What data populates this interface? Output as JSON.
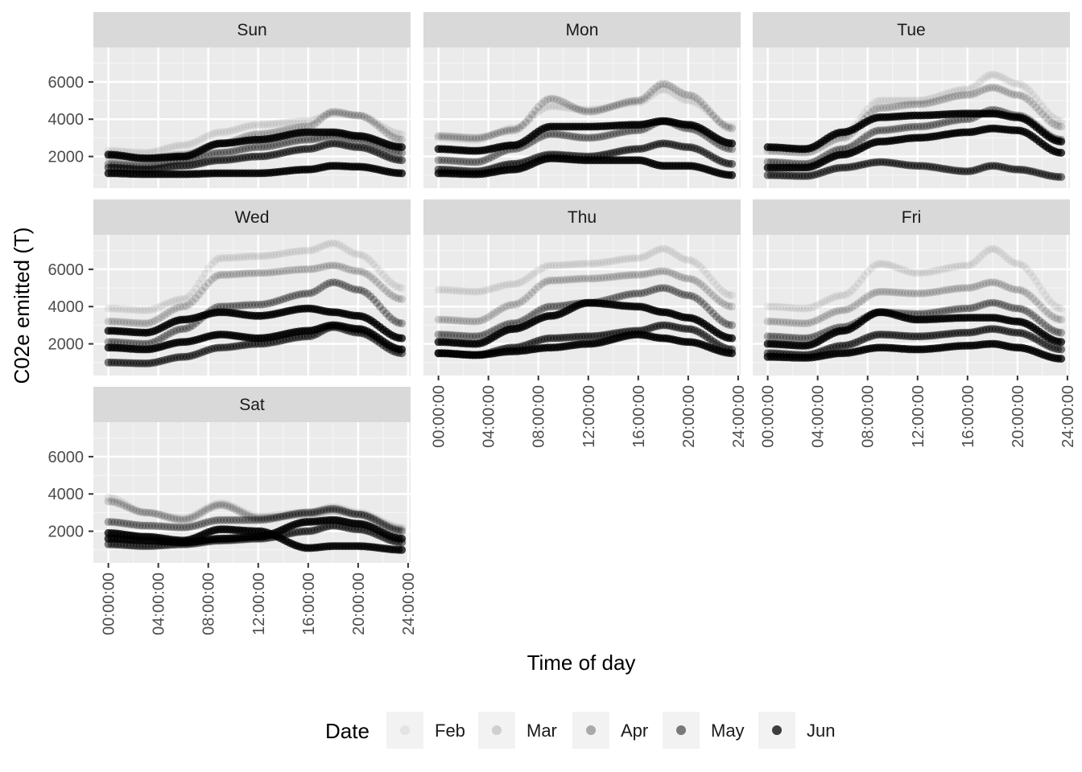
{
  "chart_data": {
    "type": "scatter",
    "title": "",
    "xlabel": "Time of day",
    "ylabel": "C02e emitted (T)",
    "facet_by": "day of week",
    "facets": [
      "Sun",
      "Mon",
      "Tue",
      "Wed",
      "Thu",
      "Fri",
      "Sat"
    ],
    "facet_layout": {
      "columns": 3,
      "rows": 3
    },
    "x_range_hours": [
      -1.2,
      24.2
    ],
    "ylim": [
      300,
      7850
    ],
    "x_ticks": [
      "00:00:00",
      "04:00:00",
      "08:00:00",
      "12:00:00",
      "16:00:00",
      "20:00:00",
      "24:00:00"
    ],
    "x_tick_hours": [
      0,
      4,
      8,
      12,
      16,
      20,
      24
    ],
    "y_ticks": [
      2000,
      4000,
      6000
    ],
    "y_tick_labels": [
      "2000",
      "4000",
      "6000"
    ],
    "grid": true,
    "legend": {
      "title": "Date",
      "position": "bottom",
      "entries": [
        "Feb",
        "Mar",
        "Apr",
        "May",
        "Jun"
      ],
      "alphas": [
        0.06,
        0.14,
        0.3,
        0.5,
        0.75
      ]
    },
    "point_color": "#000000",
    "series": [
      {
        "facet": "Sun",
        "name": "Feb",
        "hours": [
          0,
          3,
          6,
          9,
          12,
          16,
          18,
          20,
          23.5
        ],
        "values": [
          2300,
          2200,
          2600,
          3300,
          3700,
          3900,
          4300,
          4200,
          3200
        ]
      },
      {
        "facet": "Sun",
        "name": "Mar",
        "hours": [
          0,
          3,
          6,
          9,
          12,
          16,
          18,
          20,
          23.5
        ],
        "values": [
          2000,
          1900,
          2100,
          2700,
          3200,
          3600,
          4400,
          4200,
          2900
        ]
      },
      {
        "facet": "Sun",
        "name": "Apr",
        "hours": [
          0,
          3,
          6,
          9,
          12,
          16,
          18,
          20,
          23.5
        ],
        "values": [
          1600,
          1500,
          1800,
          2200,
          2500,
          2900,
          3100,
          2900,
          2200
        ]
      },
      {
        "facet": "Sun",
        "name": "May",
        "hours": [
          0,
          3,
          6,
          9,
          12,
          16,
          18,
          20,
          23.5
        ],
        "values": [
          1400,
          1300,
          1500,
          1800,
          2000,
          2400,
          2700,
          2500,
          1800
        ]
      },
      {
        "facet": "Sun",
        "name": "Jun",
        "hours": [
          0,
          3,
          6,
          9,
          12,
          16,
          18,
          20,
          23.5
        ],
        "values": [
          2100,
          1900,
          2000,
          2700,
          2900,
          3300,
          3300,
          3100,
          2500
        ]
      },
      {
        "facet": "Sun",
        "name": "Jun",
        "hours": [
          0,
          3,
          6,
          9,
          12,
          16,
          18,
          20,
          23.5
        ],
        "values": [
          1100,
          1050,
          1050,
          1100,
          1100,
          1300,
          1500,
          1450,
          1100
        ]
      },
      {
        "facet": "Mon",
        "name": "Feb",
        "hours": [
          0,
          3,
          6,
          9,
          12,
          16,
          18,
          20,
          23.5
        ],
        "values": [
          3000,
          2900,
          3500,
          4700,
          4500,
          4900,
          5600,
          5000,
          3600
        ]
      },
      {
        "facet": "Mon",
        "name": "Mar",
        "hours": [
          0,
          3,
          6,
          9,
          12,
          16,
          18,
          20,
          23.5
        ],
        "values": [
          3100,
          3000,
          3400,
          5100,
          4400,
          5000,
          5900,
          5300,
          3500
        ]
      },
      {
        "facet": "Mon",
        "name": "Apr",
        "hours": [
          0,
          3,
          6,
          9,
          12,
          16,
          18,
          20,
          23.5
        ],
        "values": [
          1800,
          1700,
          2400,
          3200,
          3000,
          3400,
          3900,
          3500,
          2400
        ]
      },
      {
        "facet": "Mon",
        "name": "May",
        "hours": [
          0,
          3,
          6,
          9,
          12,
          16,
          18,
          20,
          23.5
        ],
        "values": [
          1300,
          1200,
          1600,
          2100,
          2000,
          2400,
          2700,
          2500,
          1600
        ]
      },
      {
        "facet": "Mon",
        "name": "Jun",
        "hours": [
          0,
          3,
          6,
          9,
          12,
          16,
          18,
          20,
          23.5
        ],
        "values": [
          2400,
          2300,
          2600,
          3600,
          3600,
          3700,
          3900,
          3700,
          2700
        ]
      },
      {
        "facet": "Mon",
        "name": "Jun",
        "hours": [
          0,
          3,
          6,
          9,
          12,
          16,
          18,
          20,
          23.5
        ],
        "values": [
          1100,
          1050,
          1300,
          1900,
          1800,
          1800,
          1500,
          1500,
          1000
        ]
      },
      {
        "facet": "Tue",
        "name": "Feb",
        "hours": [
          0,
          3,
          6,
          9,
          12,
          16,
          18,
          20,
          23.5
        ],
        "values": [
          2500,
          2400,
          3200,
          5000,
          5000,
          5600,
          6400,
          5900,
          3900
        ]
      },
      {
        "facet": "Tue",
        "name": "Mar",
        "hours": [
          0,
          3,
          6,
          9,
          12,
          16,
          18,
          20,
          23.5
        ],
        "values": [
          2300,
          2200,
          3000,
          4600,
          4800,
          5300,
          5700,
          5300,
          3600
        ]
      },
      {
        "facet": "Tue",
        "name": "Apr",
        "hours": [
          0,
          3,
          6,
          9,
          12,
          16,
          18,
          20,
          23.5
        ],
        "values": [
          1700,
          1600,
          2400,
          3400,
          3600,
          4000,
          4500,
          4200,
          2900
        ]
      },
      {
        "facet": "Tue",
        "name": "May",
        "hours": [
          0,
          3,
          6,
          9,
          12,
          16,
          18,
          20,
          23.5
        ],
        "values": [
          1000,
          950,
          1400,
          1700,
          1500,
          1200,
          1500,
          1300,
          900
        ]
      },
      {
        "facet": "Tue",
        "name": "Jun",
        "hours": [
          0,
          3,
          6,
          9,
          12,
          16,
          18,
          20,
          23.5
        ],
        "values": [
          2500,
          2400,
          3300,
          4100,
          4200,
          4300,
          4300,
          4100,
          2800
        ]
      },
      {
        "facet": "Tue",
        "name": "Jun",
        "hours": [
          0,
          3,
          6,
          9,
          12,
          16,
          18,
          20,
          23.5
        ],
        "values": [
          1400,
          1400,
          2100,
          2800,
          3000,
          3300,
          3500,
          3400,
          2200
        ]
      },
      {
        "facet": "Wed",
        "name": "Feb",
        "hours": [
          0,
          3,
          6,
          9,
          12,
          16,
          18,
          20,
          23.5
        ],
        "values": [
          3900,
          3800,
          4400,
          6600,
          6700,
          7000,
          7400,
          6800,
          5000
        ]
      },
      {
        "facet": "Wed",
        "name": "Mar",
        "hours": [
          0,
          3,
          6,
          9,
          12,
          16,
          18,
          20,
          23.5
        ],
        "values": [
          3200,
          3100,
          4000,
          5700,
          5800,
          6000,
          6200,
          5900,
          4400
        ]
      },
      {
        "facet": "Wed",
        "name": "Apr",
        "hours": [
          0,
          3,
          6,
          9,
          12,
          16,
          18,
          20,
          23.5
        ],
        "values": [
          2100,
          2000,
          2800,
          4000,
          4100,
          4700,
          5300,
          4900,
          3100
        ]
      },
      {
        "facet": "Wed",
        "name": "May",
        "hours": [
          0,
          3,
          6,
          9,
          12,
          16,
          18,
          20,
          23.5
        ],
        "values": [
          1000,
          950,
          1300,
          1800,
          2000,
          2400,
          2900,
          2600,
          1500
        ]
      },
      {
        "facet": "Wed",
        "name": "Jun",
        "hours": [
          0,
          3,
          6,
          9,
          12,
          16,
          18,
          20,
          23.5
        ],
        "values": [
          2700,
          2600,
          3300,
          3700,
          3500,
          3900,
          3700,
          3500,
          2300
        ]
      },
      {
        "facet": "Wed",
        "name": "Jun",
        "hours": [
          0,
          3,
          6,
          9,
          12,
          16,
          18,
          20,
          23.5
        ],
        "values": [
          1800,
          1700,
          2100,
          2500,
          2300,
          2700,
          3000,
          2800,
          1700
        ]
      },
      {
        "facet": "Thu",
        "name": "Feb",
        "hours": [
          0,
          3,
          6,
          9,
          12,
          16,
          18,
          20,
          23.5
        ],
        "values": [
          4900,
          4800,
          5200,
          6200,
          6300,
          6600,
          7100,
          6500,
          4600
        ]
      },
      {
        "facet": "Thu",
        "name": "Mar",
        "hours": [
          0,
          3,
          6,
          9,
          12,
          16,
          18,
          20,
          23.5
        ],
        "values": [
          3300,
          3200,
          4100,
          5400,
          5500,
          5700,
          5900,
          5500,
          4000
        ]
      },
      {
        "facet": "Thu",
        "name": "Apr",
        "hours": [
          0,
          3,
          6,
          9,
          12,
          16,
          18,
          20,
          23.5
        ],
        "values": [
          2500,
          2400,
          3100,
          4000,
          4200,
          4700,
          5000,
          4600,
          3000
        ]
      },
      {
        "facet": "Thu",
        "name": "May",
        "hours": [
          0,
          3,
          6,
          9,
          12,
          16,
          18,
          20,
          23.5
        ],
        "values": [
          1500,
          1400,
          1800,
          2300,
          2400,
          2700,
          3000,
          2800,
          1700
        ]
      },
      {
        "facet": "Thu",
        "name": "Jun",
        "hours": [
          0,
          3,
          6,
          9,
          12,
          16,
          18,
          20,
          23.5
        ],
        "values": [
          2100,
          2000,
          2800,
          3500,
          4200,
          4000,
          3700,
          3400,
          2300
        ]
      },
      {
        "facet": "Thu",
        "name": "Jun",
        "hours": [
          0,
          3,
          6,
          9,
          12,
          16,
          18,
          20,
          23.5
        ],
        "values": [
          1500,
          1400,
          1600,
          1800,
          2000,
          2500,
          2300,
          2100,
          1500
        ]
      },
      {
        "facet": "Fri",
        "name": "Feb",
        "hours": [
          0,
          3,
          6,
          9,
          12,
          16,
          18,
          20,
          23.5
        ],
        "values": [
          4000,
          3900,
          4600,
          6300,
          5800,
          6200,
          7100,
          6300,
          3900
        ]
      },
      {
        "facet": "Fri",
        "name": "Mar",
        "hours": [
          0,
          3,
          6,
          9,
          12,
          16,
          18,
          20,
          23.5
        ],
        "values": [
          3200,
          3100,
          3800,
          4800,
          4700,
          5000,
          5300,
          4900,
          3300
        ]
      },
      {
        "facet": "Fri",
        "name": "Apr",
        "hours": [
          0,
          3,
          6,
          9,
          12,
          16,
          18,
          20,
          23.5
        ],
        "values": [
          2400,
          2300,
          2900,
          3700,
          3600,
          3900,
          4200,
          3900,
          2600
        ]
      },
      {
        "facet": "Fri",
        "name": "May",
        "hours": [
          0,
          3,
          6,
          9,
          12,
          16,
          18,
          20,
          23.5
        ],
        "values": [
          1500,
          1400,
          1900,
          2500,
          2400,
          2600,
          2800,
          2600,
          1700
        ]
      },
      {
        "facet": "Fri",
        "name": "Jun",
        "hours": [
          0,
          3,
          6,
          9,
          12,
          16,
          18,
          20,
          23.5
        ],
        "values": [
          2000,
          1900,
          2700,
          3700,
          3300,
          3400,
          3400,
          3200,
          2100
        ]
      },
      {
        "facet": "Fri",
        "name": "Jun",
        "hours": [
          0,
          3,
          6,
          9,
          12,
          16,
          18,
          20,
          23.5
        ],
        "values": [
          1300,
          1250,
          1500,
          1800,
          1700,
          1900,
          2000,
          1800,
          1200
        ]
      },
      {
        "facet": "Sat",
        "name": "Feb",
        "hours": [
          0,
          3,
          6,
          9,
          12,
          16,
          18,
          20,
          23.5
        ],
        "values": [
          3800,
          3000,
          2700,
          3500,
          2800,
          3000,
          3300,
          3000,
          2200
        ]
      },
      {
        "facet": "Sat",
        "name": "Mar",
        "hours": [
          0,
          3,
          6,
          9,
          12,
          16,
          18,
          20,
          23.5
        ],
        "values": [
          3600,
          3000,
          2600,
          3400,
          2700,
          2900,
          3100,
          2900,
          2100
        ]
      },
      {
        "facet": "Sat",
        "name": "Apr",
        "hours": [
          0,
          3,
          6,
          9,
          12,
          16,
          18,
          20,
          23.5
        ],
        "values": [
          2500,
          2300,
          2200,
          2600,
          2600,
          3000,
          3200,
          2900,
          2000
        ]
      },
      {
        "facet": "Sat",
        "name": "May",
        "hours": [
          0,
          3,
          6,
          9,
          12,
          16,
          18,
          20,
          23.5
        ],
        "values": [
          1300,
          1200,
          1300,
          1500,
          1600,
          2000,
          2300,
          2100,
          1400
        ]
      },
      {
        "facet": "Sat",
        "name": "Jun",
        "hours": [
          0,
          3,
          6,
          9,
          12,
          16,
          18,
          20,
          23.5
        ],
        "values": [
          1900,
          1700,
          1500,
          2100,
          2000,
          1100,
          1200,
          1200,
          1000
        ]
      },
      {
        "facet": "Sat",
        "name": "Jun",
        "hours": [
          0,
          3,
          6,
          9,
          12,
          16,
          18,
          20,
          23.5
        ],
        "values": [
          1600,
          1500,
          1400,
          1600,
          1700,
          2500,
          2600,
          2400,
          1600
        ]
      }
    ]
  }
}
